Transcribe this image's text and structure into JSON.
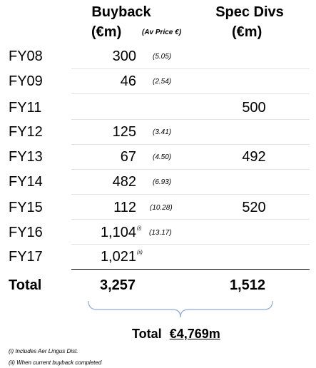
{
  "header": {
    "buyback_label": "Buyback",
    "buyback_unit": "(€m)",
    "avg_price_label": "(Av Price €)",
    "spec_label": "Spec Divs",
    "spec_unit": "(€m)"
  },
  "rows": [
    {
      "year": "FY08",
      "buyback": "300",
      "price": "(5.05)",
      "sup": "",
      "spec": ""
    },
    {
      "year": "FY09",
      "buyback": "46",
      "price": "(2.54)",
      "sup": "",
      "spec": ""
    },
    {
      "year": "FY11",
      "buyback": "",
      "price": "",
      "sup": "",
      "spec": "500"
    },
    {
      "year": "FY12",
      "buyback": "125",
      "price": "(3.41)",
      "sup": "",
      "spec": ""
    },
    {
      "year": "FY13",
      "buyback": "67",
      "price": "(4.50)",
      "sup": "",
      "spec": "492"
    },
    {
      "year": "FY14",
      "buyback": "482",
      "price": "(6.93)",
      "sup": "",
      "spec": ""
    },
    {
      "year": "FY15",
      "buyback": "112",
      "price": "(10.28)",
      "sup": "",
      "spec": "520"
    },
    {
      "year": "FY16",
      "buyback": "1,104",
      "price": "(13.17)",
      "sup": "(i)",
      "spec": ""
    },
    {
      "year": "FY17",
      "buyback": "1,021",
      "price": "",
      "sup": "(ii)",
      "spec": ""
    }
  ],
  "total": {
    "label": "Total",
    "buyback": "3,257",
    "spec": "1,512"
  },
  "grand_total": {
    "label": "Total",
    "value": "€4,769m"
  },
  "notes": [
    "(i) Includes Aer Lingus Dist.",
    "(ii) When current buyback completed"
  ]
}
